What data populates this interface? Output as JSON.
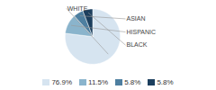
{
  "chart_data": {
    "type": "pie",
    "categories": [
      "WHITE",
      "HISPANIC",
      "ASIAN",
      "BLACK"
    ],
    "values": [
      76.9,
      11.5,
      5.8,
      5.8
    ],
    "value_labels": [
      "76.9%",
      "11.5%",
      "5.8%",
      "5.8%"
    ],
    "colors": [
      "#d6e4f0",
      "#8ab4cc",
      "#4e7fa0",
      "#1c3f5e"
    ],
    "legend": "bottom"
  }
}
